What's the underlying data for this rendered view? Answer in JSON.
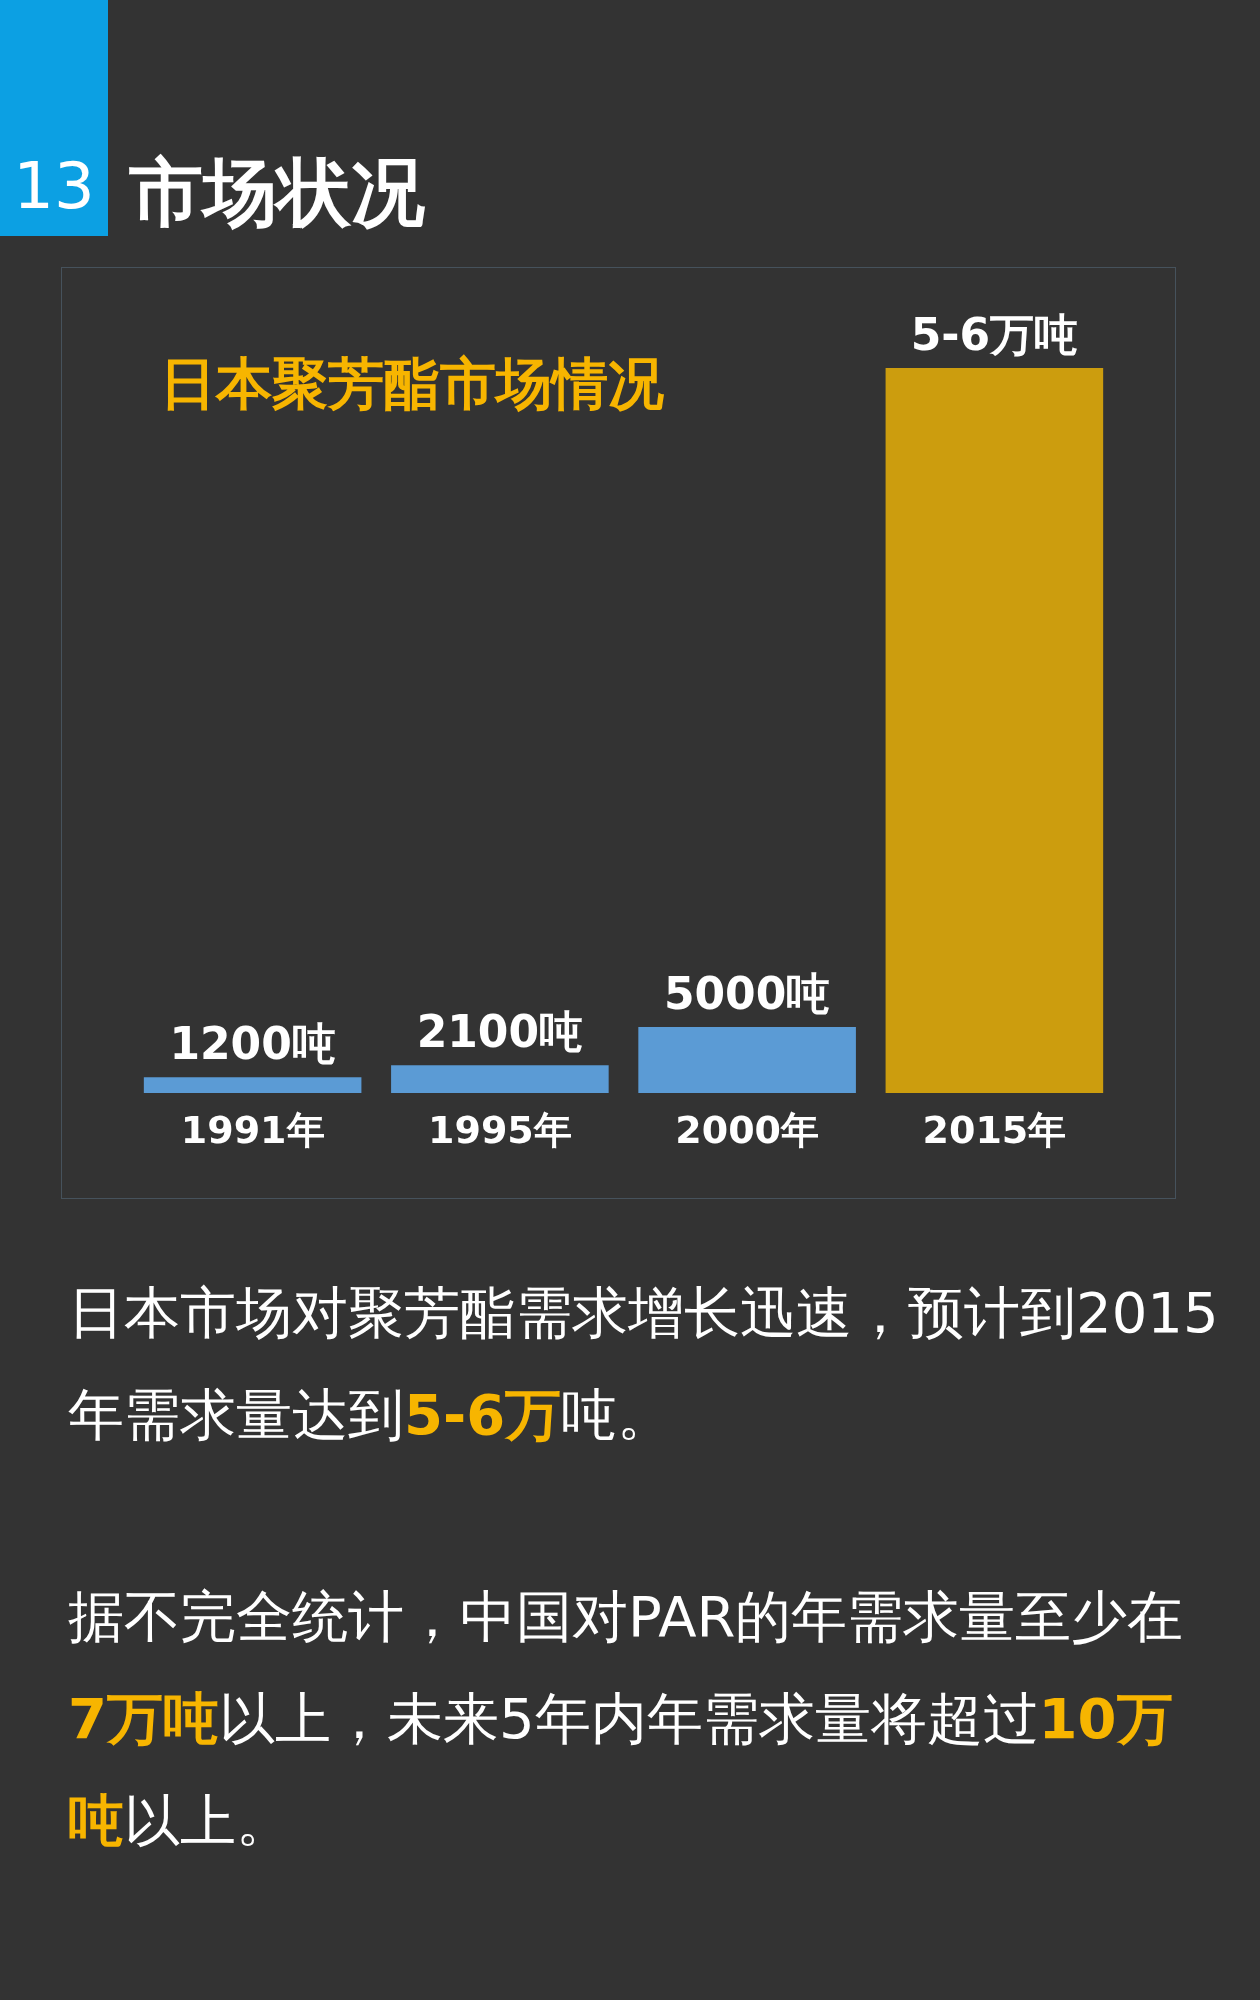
{
  "chart_data": {
    "type": "bar",
    "title": "日本聚芳酯市场情况",
    "categories": [
      "1991年",
      "1995年",
      "2000年",
      "2015年"
    ],
    "values": [
      1200,
      2100,
      5000,
      55000
    ],
    "value_labels": [
      "1200吨",
      "2100吨",
      "5000吨",
      "5-6万吨"
    ],
    "colors": [
      "#5b9bd5",
      "#5b9bd5",
      "#5b9bd5",
      "#cc9d0e"
    ],
    "tick_labels": "x",
    "annotations": [
      "13",
      "市场状况",
      "日本市场对聚芳酯需求增长迅速，预计到2015",
      "年需求量达到",
      "5-6万",
      "吨。",
      "据不完全统计，中国对PAR的年需求量至少在",
      "7万吨",
      "以上，未来5年内年需求量将超过",
      "10万",
      "吨",
      "以上。"
    ]
  }
}
